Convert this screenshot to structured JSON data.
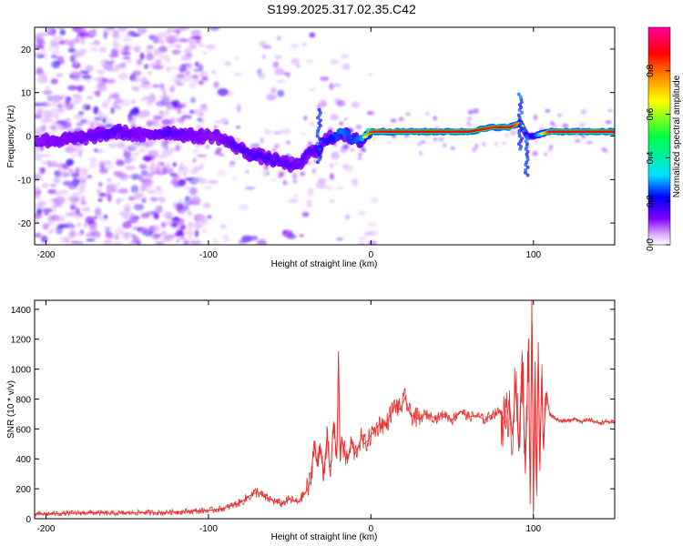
{
  "title": "S199.2025.317.02.35.C42",
  "chart_data": [
    {
      "type": "heatmap",
      "title": "S199.2025.317.02.35.C42",
      "xlabel": "Height of straight line (km)",
      "ylabel": "Frequency (Hz)",
      "xlim": [
        -207,
        150
      ],
      "ylim": [
        -25,
        25
      ],
      "xticks": [
        -200,
        -100,
        0,
        100
      ],
      "yticks": [
        -20,
        -10,
        0,
        10,
        20
      ],
      "colorbar": {
        "label": "Normalized spectral amplitude",
        "range": [
          0.0,
          1.0
        ],
        "ticks": [
          "0.0",
          "0.2",
          "0.4",
          "0.6",
          "0.8"
        ],
        "tick_values": [
          0.0,
          0.2,
          0.4,
          0.6,
          0.8
        ],
        "colors": [
          "#ffffff",
          "#d9a6ff",
          "#8000ff",
          "#0000ff",
          "#00e0ff",
          "#00ff40",
          "#ffff00",
          "#ff8000",
          "#ff0000",
          "#ff00a0"
        ]
      },
      "ridge": {
        "x": [
          -207,
          -190,
          -170,
          -155,
          -140,
          -125,
          -110,
          -95,
          -85,
          -75,
          -65,
          -55,
          -45,
          -38,
          -32,
          -28,
          -22,
          -18,
          -12,
          -6,
          0,
          20,
          40,
          60,
          75,
          85,
          92,
          96,
          100,
          110,
          130,
          150
        ],
        "freq": [
          -1,
          -1,
          0,
          1,
          0,
          1,
          0,
          0,
          -2,
          -4,
          -5,
          -6,
          -7,
          -4,
          -3,
          -1,
          0,
          1,
          -1,
          -1,
          1,
          1,
          1,
          1,
          2,
          2,
          3,
          0,
          0,
          1,
          1,
          1
        ],
        "amplitude": [
          0.2,
          0.22,
          0.25,
          0.28,
          0.2,
          0.3,
          0.22,
          0.2,
          0.28,
          0.3,
          0.3,
          0.28,
          0.25,
          0.28,
          0.3,
          0.32,
          0.45,
          0.5,
          0.45,
          0.5,
          0.85,
          0.9,
          0.88,
          0.9,
          0.85,
          0.92,
          0.75,
          0.3,
          0.4,
          0.88,
          0.9,
          0.88
        ]
      }
    },
    {
      "type": "line",
      "xlabel": "Height of straight line (km)",
      "ylabel": "SNR (10 * v/v)",
      "xlim": [
        -207,
        150
      ],
      "ylim": [
        0,
        1460
      ],
      "xticks": [
        -200,
        -100,
        0,
        100
      ],
      "yticks": [
        0,
        200,
        400,
        600,
        800,
        1000,
        1200,
        1400
      ],
      "color": "#e83030",
      "series": [
        {
          "name": "SNR",
          "x": [
            -207,
            -200,
            -190,
            -180,
            -170,
            -160,
            -150,
            -140,
            -130,
            -120,
            -110,
            -100,
            -90,
            -85,
            -80,
            -75,
            -70,
            -65,
            -60,
            -55,
            -50,
            -45,
            -40,
            -37,
            -35,
            -33,
            -31,
            -29,
            -27,
            -25,
            -23,
            -21,
            -20,
            -19,
            -18,
            -16,
            -14,
            -12,
            -10,
            -8,
            -6,
            -4,
            -2,
            0,
            3,
            6,
            9,
            12,
            15,
            18,
            21,
            24,
            27,
            30,
            33,
            36,
            40,
            45,
            50,
            55,
            60,
            65,
            70,
            75,
            80,
            83,
            85,
            87,
            89,
            91,
            93,
            95,
            97,
            98,
            99,
            100,
            101,
            102,
            103,
            104,
            105,
            106,
            108,
            110,
            115,
            120,
            125,
            130,
            135,
            140,
            145,
            150
          ],
          "y": [
            30,
            32,
            35,
            38,
            40,
            35,
            38,
            42,
            40,
            45,
            50,
            55,
            70,
            90,
            110,
            150,
            180,
            140,
            120,
            100,
            130,
            110,
            180,
            250,
            520,
            350,
            480,
            300,
            560,
            280,
            650,
            400,
            1120,
            380,
            550,
            420,
            400,
            520,
            430,
            480,
            540,
            500,
            520,
            560,
            600,
            640,
            620,
            700,
            760,
            730,
            810,
            700,
            680,
            660,
            700,
            690,
            670,
            700,
            660,
            720,
            680,
            690,
            660,
            700,
            720,
            600,
            800,
            560,
            900,
            450,
            1100,
            300,
            1200,
            100,
            1460,
            50,
            1050,
            200,
            1180,
            320,
            950,
            500,
            850,
            700,
            660,
            650,
            670,
            650,
            660,
            640,
            650,
            640
          ]
        }
      ]
    }
  ]
}
